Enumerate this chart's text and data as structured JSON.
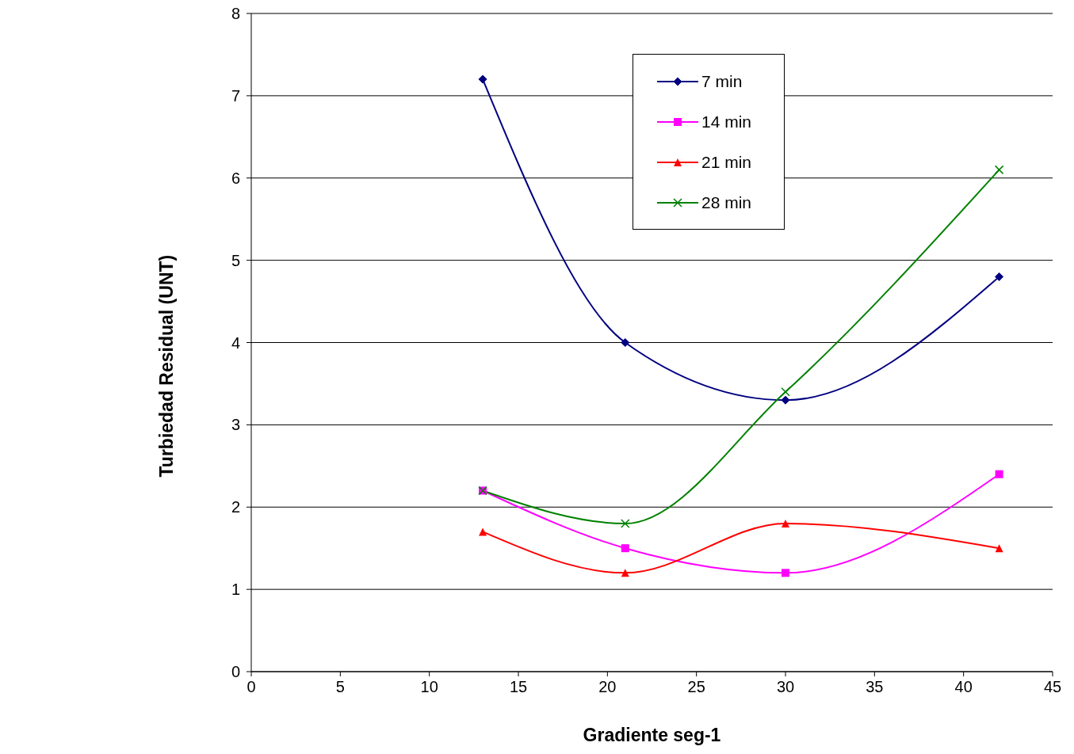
{
  "chart_data": {
    "type": "line",
    "xlabel": "Gradiente seg-1",
    "ylabel": "Turbiedad Residual (UNT)",
    "x": [
      13,
      21,
      30,
      42
    ],
    "series": [
      {
        "name": "7 min",
        "color": "#000080",
        "marker": "diamond",
        "values": [
          7.2,
          4.0,
          3.3,
          4.8
        ]
      },
      {
        "name": "14 min",
        "color": "#ff00ff",
        "marker": "square",
        "values": [
          2.2,
          1.5,
          1.2,
          2.4
        ]
      },
      {
        "name": "21 min",
        "color": "#ff0000",
        "marker": "triangle",
        "values": [
          1.7,
          1.2,
          1.8,
          1.5
        ]
      },
      {
        "name": "28 min",
        "color": "#008000",
        "marker": "cross",
        "values": [
          2.2,
          1.8,
          3.4,
          6.1
        ]
      }
    ],
    "xlim": [
      0,
      45
    ],
    "xticks": [
      0,
      5,
      10,
      15,
      20,
      25,
      30,
      35,
      40,
      45
    ],
    "ylim": [
      0,
      8
    ],
    "yticks": [
      0,
      1,
      2,
      3,
      4,
      5,
      6,
      7,
      8
    ],
    "grid": "y",
    "legend": "top right",
    "line_style": "solid"
  }
}
